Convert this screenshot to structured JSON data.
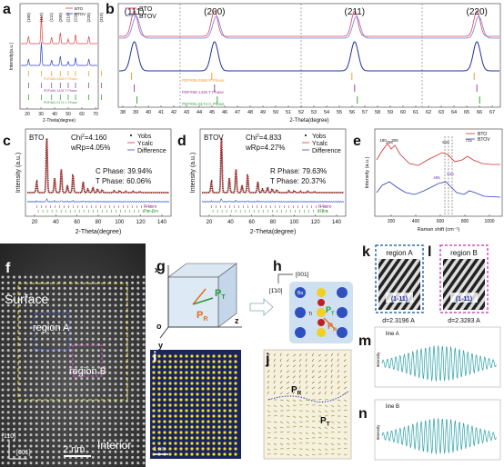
{
  "a": {
    "letter": "a",
    "legend": [
      "BTO",
      "BTOV"
    ],
    "peaks": [
      "(100)",
      "(110)",
      "(111)",
      "(200)",
      "(210)",
      "(211)",
      "(220)",
      "(310)"
    ],
    "pdf": [
      "PDF#85-0368  R Phase",
      "PDF#89-1428  T Phase",
      "PDF#81-0174  C Phase"
    ],
    "ylabel": "Intensity(a.u.)",
    "xlabel": "2-Theta(degree)",
    "xticks": [
      "20",
      "30",
      "40",
      "50",
      "60",
      "70"
    ]
  },
  "b": {
    "letter": "b",
    "legend": [
      "BTO",
      "BTOV"
    ],
    "peaks": [
      "(111)",
      "(200)",
      "(211)",
      "(220)"
    ],
    "pdf": [
      "PDF#85-0368  R Phase",
      "PDF#89-1428  T Phase",
      "PDF#81-0174  C Phase"
    ],
    "xlabel": "2-Theta(degree)",
    "xticks": [
      "38",
      "39",
      "40",
      "41",
      "42",
      "43",
      "44",
      "45",
      "46",
      "47",
      "48",
      "49",
      "50",
      "51",
      "52",
      "53",
      "54",
      "55",
      "56",
      "57",
      "58",
      "59",
      "60",
      "61",
      "62",
      "63",
      "64",
      "65",
      "66",
      "67"
    ]
  },
  "c": {
    "letter": "c",
    "sample": "BTO",
    "chi": {
      "main": "Chi",
      "sup": "2",
      "value": "=4.160"
    },
    "wrp": "wRp=4.05%",
    "phases": [
      "C Phase: 39.94%",
      "T Phase: 60.06%"
    ],
    "legend": [
      "Yobs",
      "Ycalc",
      "Difference"
    ],
    "tick_rows": [
      "P4mm",
      "Pm-3m"
    ],
    "ylabel": "Intensity (a.u.)",
    "xlabel": "2-Theta(degree)",
    "xticks": [
      "20",
      "40",
      "60",
      "80",
      "100",
      "120",
      "140"
    ]
  },
  "d": {
    "letter": "d",
    "sample": "BTOV",
    "chi": {
      "main": "Chi",
      "sup": "2",
      "value": "=4.833"
    },
    "wrp": "wRp=4.27%",
    "phases": [
      "R Phase: 79.63%",
      "T Phase: 20.37%"
    ],
    "legend": [
      "Yobs",
      "Ycalc",
      "Difference"
    ],
    "tick_rows": [
      "P4mm",
      "R3m"
    ],
    "ylabel": "Intensity (a.u.)",
    "xlabel": "2-Theta(degree)",
    "xticks": [
      "20",
      "40",
      "60",
      "80",
      "100",
      "120",
      "140"
    ]
  },
  "e": {
    "letter": "e",
    "legend": [
      "BTO",
      "BTOV"
    ],
    "peaks": [
      "180",
      "268",
      "306",
      "516",
      "715"
    ],
    "peaks_btov": [
      "495",
      "540"
    ],
    "xlabel": "Raman shift (cm⁻¹)",
    "ylabel": "Intensity (a.u.)",
    "xticks": [
      "200",
      "400",
      "600",
      "800",
      "1000"
    ]
  },
  "f": {
    "letter": "f",
    "surface": "Surface",
    "regions": [
      "region A",
      "region B"
    ],
    "interior": "Interior",
    "scale": "2 nm",
    "directions": [
      "[110]",
      "[001]"
    ]
  },
  "g": {
    "letter": "g",
    "axes": [
      "x",
      "o",
      "y",
      "z"
    ],
    "pt": {
      "main": "P",
      "sub": "T"
    },
    "pr": {
      "main": "P",
      "sub": "R"
    }
  },
  "h": {
    "letter": "h",
    "directions": [
      "[001]",
      "[1̄10]"
    ],
    "atoms": [
      "Ba",
      "Ti"
    ],
    "pt": {
      "main": "P",
      "sub": "T"
    },
    "pr": {
      "main": "P",
      "sub": "R"
    }
  },
  "i": {
    "letter": "i",
    "scale": "1 nm"
  },
  "j": {
    "letter": "j",
    "pr": {
      "main": "P",
      "sub": "R"
    },
    "pt": {
      "main": "P",
      "sub": "T"
    }
  },
  "k": {
    "letter": "k",
    "region": "region A",
    "plane": "(1-11)",
    "d": "d=2.3196 A"
  },
  "l": {
    "letter": "l",
    "region": "region B",
    "plane": "(1-11)",
    "d": "d=2.3283 A"
  },
  "m": {
    "letter": "m",
    "line": "line A",
    "ylabel": "Intensity"
  },
  "n": {
    "letter": "n",
    "line": "line B",
    "ylabel": "Intensity"
  }
}
